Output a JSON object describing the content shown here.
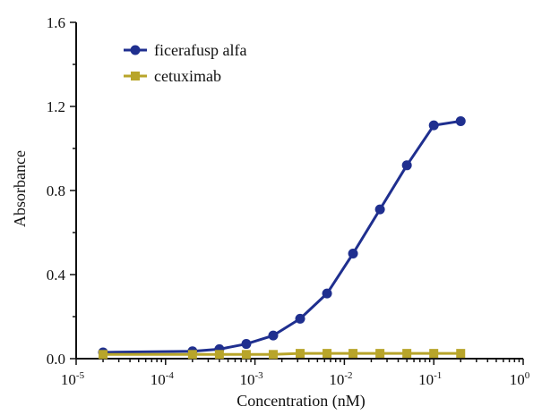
{
  "chart_data": {
    "type": "line",
    "xlabel": "Concentration (nM)",
    "ylabel": "Absorbance",
    "x_scale": "log",
    "xlim": [
      1e-05,
      1
    ],
    "ylim": [
      0,
      1.6
    ],
    "x_ticks": [
      {
        "value": 1e-05,
        "base": "10",
        "exp": "-5"
      },
      {
        "value": 0.0001,
        "base": "10",
        "exp": "-4"
      },
      {
        "value": 0.001,
        "base": "10",
        "exp": "-3"
      },
      {
        "value": 0.01,
        "base": "10",
        "exp": "-2"
      },
      {
        "value": 0.1,
        "base": "10",
        "exp": "-1"
      },
      {
        "value": 1,
        "base": "10",
        "exp": "0"
      }
    ],
    "y_ticks": [
      {
        "value": 0.0,
        "label": "0.0"
      },
      {
        "value": 0.4,
        "label": "0.4"
      },
      {
        "value": 0.8,
        "label": "0.8"
      },
      {
        "value": 1.2,
        "label": "1.2"
      },
      {
        "value": 1.6,
        "label": "1.6"
      }
    ],
    "legend_position": "top-left",
    "grid": false,
    "series": [
      {
        "name": "ficerafusp alfa",
        "color": "#1f2f8f",
        "marker": "circle",
        "x": [
          2e-05,
          0.0002,
          0.0004,
          0.0008,
          0.0016,
          0.0032,
          0.0064,
          0.0125,
          0.025,
          0.05,
          0.1,
          0.2
        ],
        "y": [
          0.03,
          0.035,
          0.045,
          0.07,
          0.11,
          0.19,
          0.31,
          0.5,
          0.71,
          0.92,
          1.11,
          1.13
        ]
      },
      {
        "name": "cetuximab",
        "color": "#b8a52a",
        "marker": "square",
        "x": [
          2e-05,
          0.0002,
          0.0004,
          0.0008,
          0.0016,
          0.0032,
          0.0064,
          0.0125,
          0.025,
          0.05,
          0.1,
          0.2
        ],
        "y": [
          0.02,
          0.02,
          0.02,
          0.02,
          0.02,
          0.025,
          0.025,
          0.025,
          0.025,
          0.025,
          0.025,
          0.025
        ]
      }
    ]
  }
}
